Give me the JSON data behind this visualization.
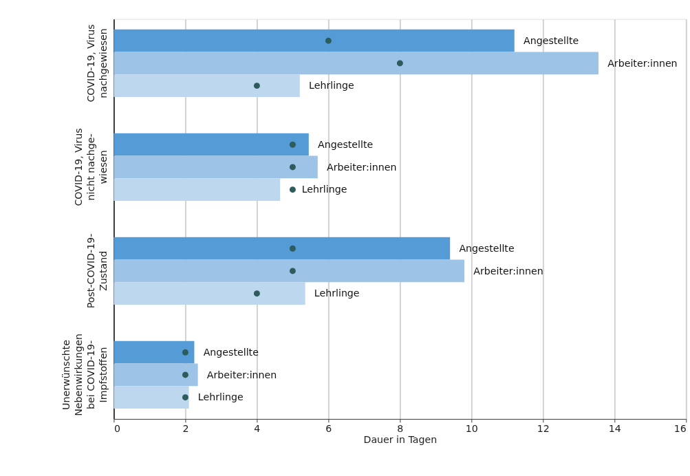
{
  "chart_data": {
    "type": "bar",
    "orientation": "horizontal",
    "xlabel": "Dauer in Tagen",
    "categories": [
      "COVID-19, Virus\nnachgewiesen",
      "COVID-19, Virus\nnicht nachge-\nwiesen",
      "Post-COVID-19-\nZustand",
      "Unerwünschte\nNebenwirkungen\nbei COVID-19-\nImpfstoffen"
    ],
    "series": [
      {
        "name": "Angestellte",
        "color": "#559bd6",
        "values": [
          11.2,
          5.45,
          9.4,
          2.25
        ]
      },
      {
        "name": "Arbeiter:innen",
        "color": "#9dc3e6",
        "values": [
          13.55,
          5.7,
          9.8,
          2.35
        ]
      },
      {
        "name": "Lehrlinge",
        "color": "#bdd7ee",
        "values": [
          5.2,
          4.65,
          5.35,
          2.1
        ]
      },
      {
        "type": "scatter",
        "marker": "circle",
        "color": "#2d5c5c",
        "values": [
          6,
          5,
          5,
          2
        ]
      },
      {
        "type": "scatter",
        "marker": "circle",
        "color": "#2d5c5c",
        "values": [
          8,
          5,
          5,
          2
        ]
      },
      {
        "type": "scatter",
        "marker": "circle",
        "color": "#2d5c5c",
        "values": [
          4,
          5,
          4,
          2
        ]
      }
    ],
    "xlim": [
      0,
      16
    ],
    "xticks": [
      0,
      2,
      4,
      6,
      8,
      10,
      12,
      14,
      16
    ],
    "grid": "x"
  }
}
